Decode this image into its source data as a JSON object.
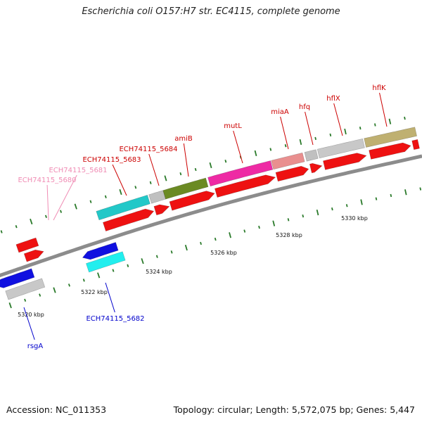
{
  "title": "Escherichia coli O157:H7 str. EC4115, complete genome",
  "footer": {
    "accession": "Accession: NC_011353",
    "topology": "Topology: circular; Length: 5,572,075 bp; Genes: 5,447"
  },
  "colors": {
    "backbone": "#8c8c8c",
    "tick": "#2a7a2a",
    "label_red": "#cc0000",
    "label_pink": "#f08cb4",
    "label_blue": "#0000cc"
  },
  "kbp_labels": [
    "5320 kbp",
    "5322 kbp",
    "5324 kbp",
    "5326 kbp",
    "5328 kbp",
    "5330 kbp"
  ],
  "genes": [
    {
      "name": "rsgA",
      "color": "blue"
    },
    {
      "name": "ECH74115_5680",
      "color": "pink"
    },
    {
      "name": "ECH74115_5681",
      "color": "pink"
    },
    {
      "name": "ECH74115_5682",
      "color": "blue"
    },
    {
      "name": "ECH74115_5683",
      "color": "red"
    },
    {
      "name": "ECH74115_5684",
      "color": "red"
    },
    {
      "name": "amiB",
      "color": "red"
    },
    {
      "name": "mutL",
      "color": "red"
    },
    {
      "name": "miaA",
      "color": "red"
    },
    {
      "name": "hfq",
      "color": "red"
    },
    {
      "name": "hflX",
      "color": "red"
    },
    {
      "name": "hflK",
      "color": "red"
    }
  ]
}
